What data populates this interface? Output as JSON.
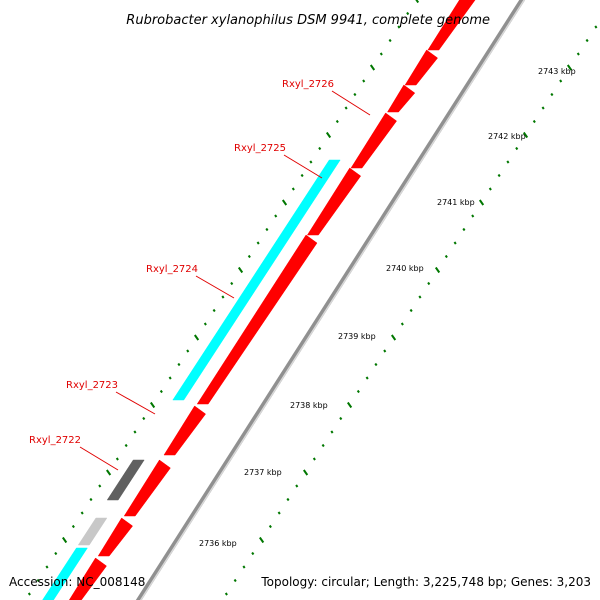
{
  "title": "Rubrobacter xylanophilus DSM 9941, complete genome",
  "accession": "Accession: NC_008148",
  "topology": "Topology: circular; Length: 3,225,748 bp; Genes: 3,203",
  "colors": {
    "forward_strand": "#ff0000",
    "reverse_strand": "#00ffff",
    "gray_dark": "#606060",
    "gray_light": "#c8c8c8",
    "backbone": "#909090",
    "ticks": "#007700",
    "callout": "#e00000",
    "text": "#000000"
  },
  "scale": {
    "unit": "kbp",
    "labels": [
      "2736 kbp",
      "2737 kbp",
      "2738 kbp",
      "2739 kbp",
      "2740 kbp",
      "2741 kbp",
      "2742 kbp",
      "2743 kbp"
    ]
  },
  "gene_labels": [
    "Rxyl_2722",
    "Rxyl_2723",
    "Rxyl_2724",
    "Rxyl_2725",
    "Rxyl_2726"
  ],
  "features": [
    {
      "type": "cds",
      "strand": "forward",
      "color": "red"
    },
    {
      "type": "cds",
      "strand": "forward",
      "color": "red"
    },
    {
      "type": "cds",
      "strand": "forward",
      "color": "red"
    },
    {
      "type": "cds",
      "strand": "forward",
      "color": "red"
    },
    {
      "type": "cds",
      "strand": "forward",
      "color": "red"
    },
    {
      "type": "cds",
      "strand": "forward",
      "color": "red"
    },
    {
      "type": "cds",
      "strand": "forward",
      "color": "red"
    },
    {
      "type": "cds",
      "strand": "forward",
      "color": "red"
    },
    {
      "type": "cds",
      "strand": "forward",
      "color": "red"
    },
    {
      "type": "cds",
      "strand": "forward",
      "color": "red"
    },
    {
      "type": "cds",
      "strand": "forward",
      "color": "red"
    },
    {
      "type": "cds",
      "strand": "forward",
      "color": "red"
    },
    {
      "type": "cds",
      "strand": "forward",
      "color": "red"
    },
    {
      "type": "cds",
      "strand": "reverse",
      "color": "cyan"
    },
    {
      "type": "cds",
      "strand": "reverse",
      "color": "dark-gray"
    },
    {
      "type": "cds",
      "strand": "reverse",
      "color": "light-gray"
    },
    {
      "type": "cds",
      "strand": "reverse",
      "color": "cyan"
    }
  ]
}
